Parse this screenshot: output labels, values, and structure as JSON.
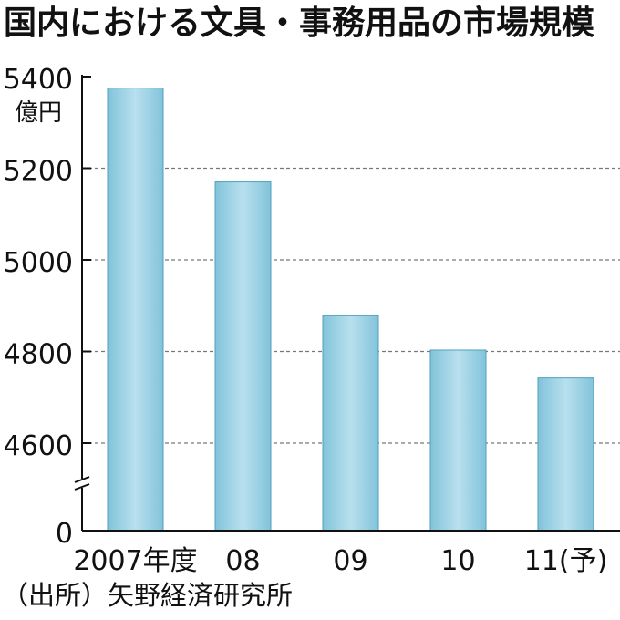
{
  "title": "国内における文具・事務用品の市場規模",
  "source": "（出所）矢野経済研究所",
  "chart_data": {
    "type": "bar",
    "title": "国内における文具・事務用品の市場規模",
    "ylabel": "億円",
    "categories": [
      "2007年度",
      "08",
      "09",
      "10",
      "11(予)"
    ],
    "values": [
      5375,
      5170,
      4878,
      4803,
      4742
    ],
    "y_ticks": [
      5400,
      5200,
      5000,
      4800,
      4600
    ],
    "y_zero_label": "0",
    "ylim": [
      4400,
      5400
    ],
    "axis_break": true,
    "grid": true,
    "colors": {
      "bar_light": "#b8e0ee",
      "bar_dark": "#82c3da",
      "bar_edge": "#4f9fbe"
    }
  }
}
